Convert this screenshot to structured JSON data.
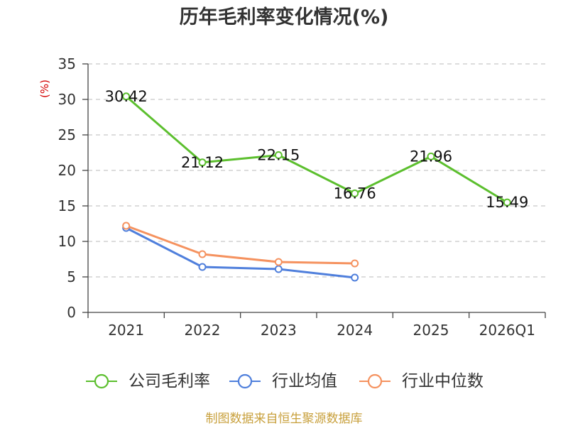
{
  "chart_data": {
    "type": "line",
    "title": "历年毛利率变化情况(%)",
    "ylabel": "(%)",
    "categories": [
      "2021",
      "2022",
      "2023",
      "2024",
      "2025",
      "2026Q1"
    ],
    "ylim": [
      0,
      35
    ],
    "yticks": [
      0,
      5,
      10,
      15,
      20,
      25,
      30,
      35
    ],
    "grid": true,
    "legend_position": "bottom",
    "series": [
      {
        "name": "公司毛利率",
        "color": "#5cbf2e",
        "show_data_labels": true,
        "values": [
          30.42,
          21.12,
          22.15,
          16.76,
          21.96,
          15.49
        ]
      },
      {
        "name": "行业均值",
        "color": "#4f7fdc",
        "show_data_labels": false,
        "values": [
          11.9,
          6.4,
          6.1,
          4.9,
          null,
          null
        ]
      },
      {
        "name": "行业中位数",
        "color": "#f5925f",
        "show_data_labels": false,
        "values": [
          12.2,
          8.2,
          7.1,
          6.9,
          null,
          null
        ]
      }
    ]
  },
  "footer": {
    "text": "制图数据来自恒生聚源数据库",
    "color": "#c8a03c"
  }
}
